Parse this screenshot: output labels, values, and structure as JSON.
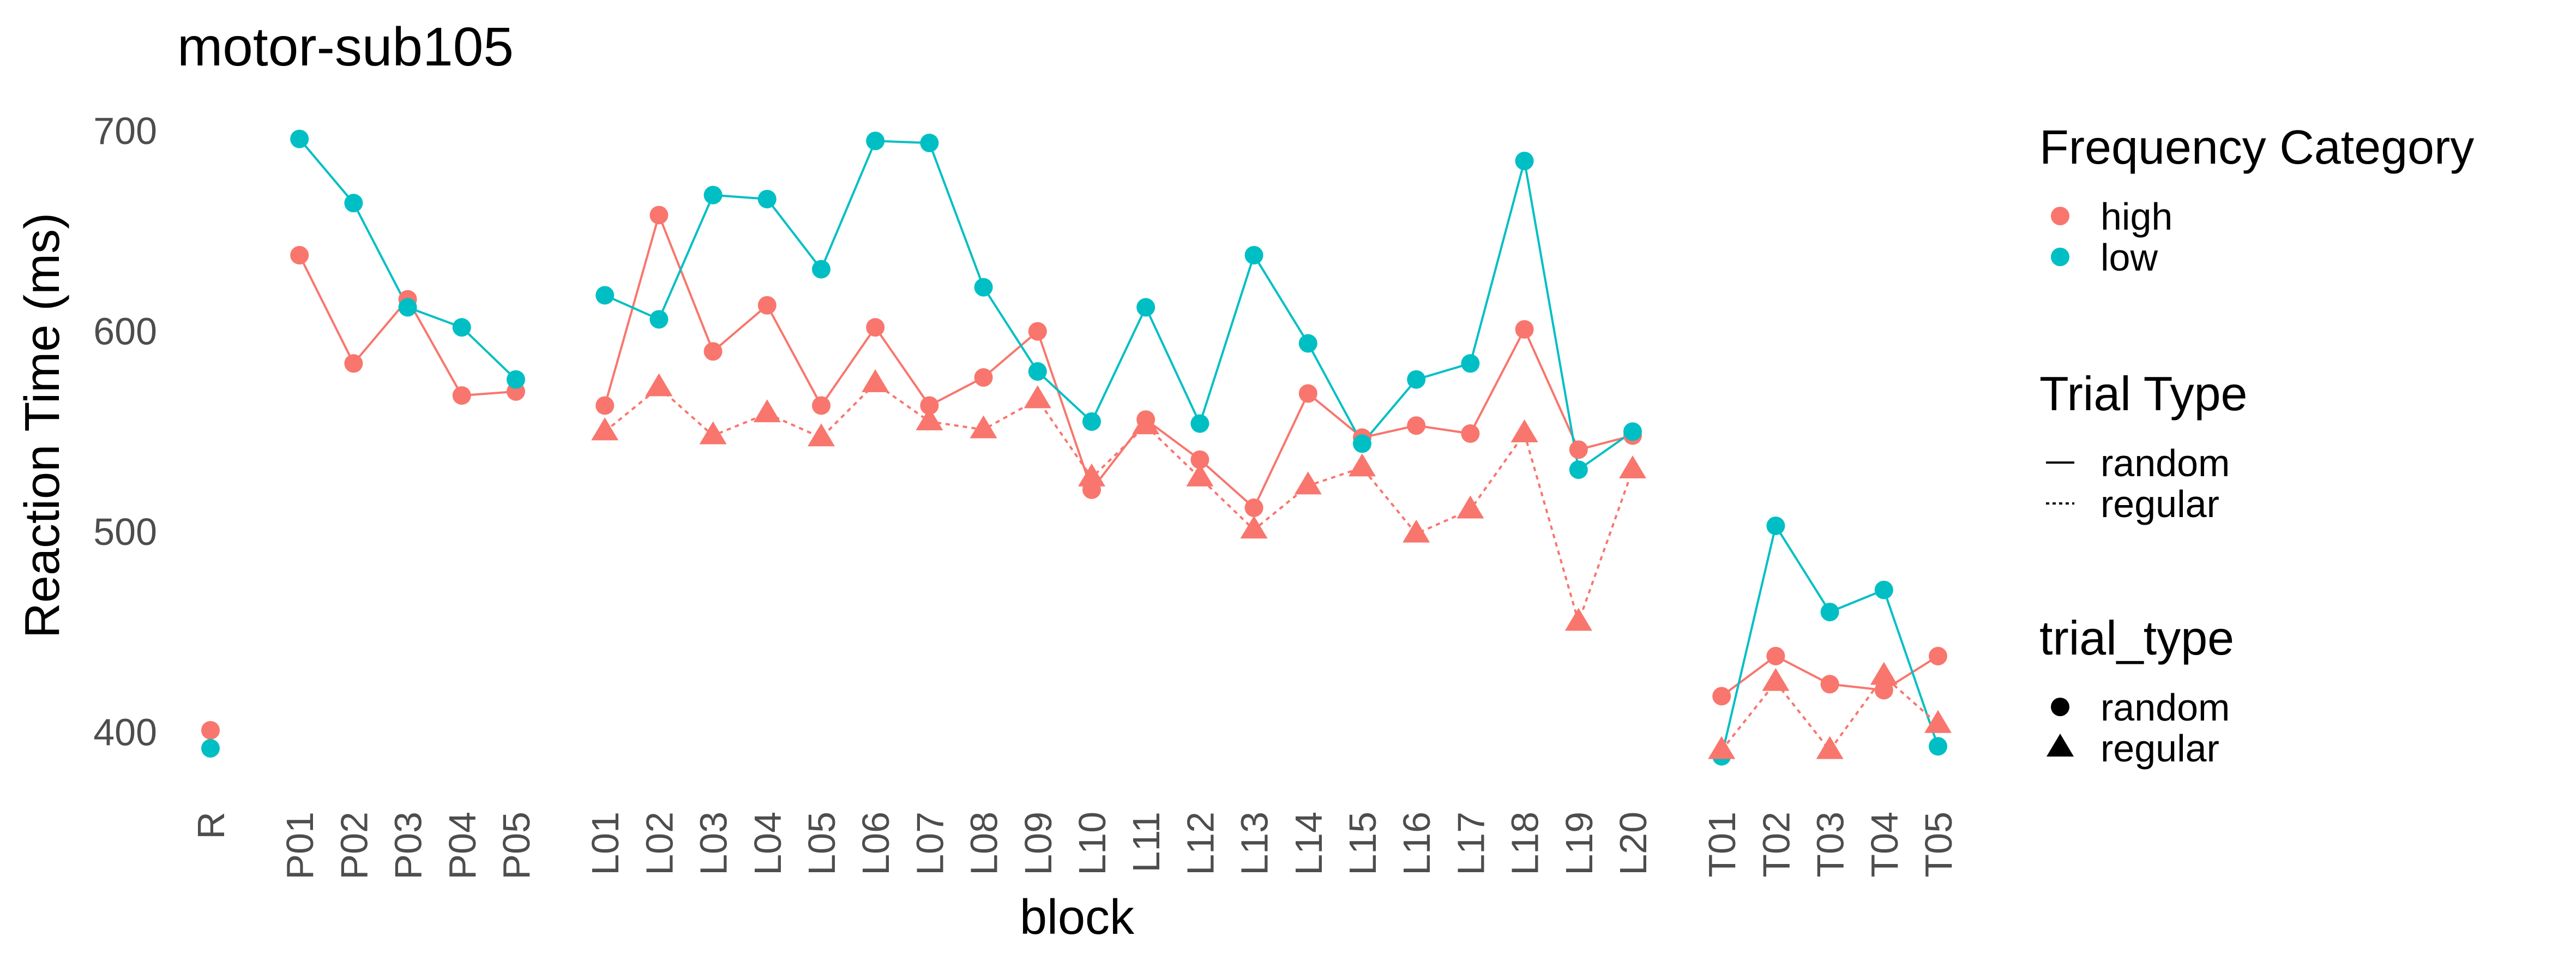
{
  "chart_data": {
    "type": "line",
    "title": "motor-sub105",
    "xlabel": "block",
    "ylabel": "Reaction Time (ms)",
    "ylim": [
      368,
      708
    ],
    "yticks": [
      400,
      500,
      600,
      700
    ],
    "grid": false,
    "legend_position": "right",
    "x_groups": [
      [
        "R"
      ],
      [
        "P01",
        "P02",
        "P03",
        "P04",
        "P05"
      ],
      [
        "L01",
        "L02",
        "L03",
        "L04",
        "L05",
        "L06",
        "L07",
        "L08",
        "L09",
        "L10",
        "L11",
        "L12",
        "L13",
        "L14",
        "L15",
        "L16",
        "L17",
        "L18",
        "L19",
        "L20"
      ],
      [
        "T01",
        "T02",
        "T03",
        "T04",
        "T05"
      ]
    ],
    "colors": {
      "high": "#F8766D",
      "low": "#00BFC4"
    },
    "series": [
      {
        "frequency": "high",
        "trial_type": "random",
        "values": {
          "R": [
            401
          ],
          "P01": 638,
          "P02": 584,
          "P03": 616,
          "P04": 568,
          "P05": 570,
          "L01": 563,
          "L02": 658,
          "L03": 590,
          "L04": 613,
          "L05": 563,
          "L06": 602,
          "L07": 563,
          "L08": 577,
          "L09": 600,
          "L10": 521,
          "L11": 556,
          "L12": 536,
          "L13": 512,
          "L14": 569,
          "L15": 547,
          "L16": 553,
          "L17": 549,
          "L18": 601,
          "L19": 541,
          "L20": 548,
          "T01": 418,
          "T02": 438,
          "T03": 424,
          "T04": 421,
          "T05": 438
        }
      },
      {
        "frequency": "low",
        "trial_type": "random",
        "values": {
          "R": [
            392
          ],
          "P01": 696,
          "P02": 664,
          "P03": 612,
          "P04": 602,
          "P05": 576,
          "L01": 618,
          "L02": 606,
          "L03": 668,
          "L04": 666,
          "L05": 631,
          "L06": 695,
          "L07": 694,
          "L08": 622,
          "L09": 580,
          "L10": 555,
          "L11": 612,
          "L12": 554,
          "L13": 638,
          "L14": 594,
          "L15": 544,
          "L16": 576,
          "L17": 584,
          "L18": 685,
          "L19": 531,
          "L20": 550,
          "T01": 388,
          "T02": 503,
          "T03": 460,
          "T04": 471,
          "T05": 393
        }
      },
      {
        "frequency": "high",
        "trial_type": "regular",
        "values": {
          "L01": 550,
          "L02": 572,
          "L03": 548,
          "L04": 559,
          "L05": 547,
          "L06": 574,
          "L07": 555,
          "L08": 551,
          "L09": 566,
          "L10": 527,
          "L11": 553,
          "L12": 527,
          "L13": 501,
          "L14": 523,
          "L15": 532,
          "L16": 499,
          "L17": 511,
          "L18": 549,
          "L19": 455,
          "L20": 531,
          "T01": 391,
          "T02": 425,
          "T03": 391,
          "T04": 428,
          "T05": 404
        }
      }
    ],
    "legends": [
      {
        "title": "Frequency Category",
        "items": [
          "high",
          "low"
        ]
      },
      {
        "title": "Trial Type",
        "items": [
          "random",
          "regular"
        ]
      },
      {
        "title": "trial_type",
        "items": [
          "random",
          "regular"
        ]
      }
    ]
  }
}
